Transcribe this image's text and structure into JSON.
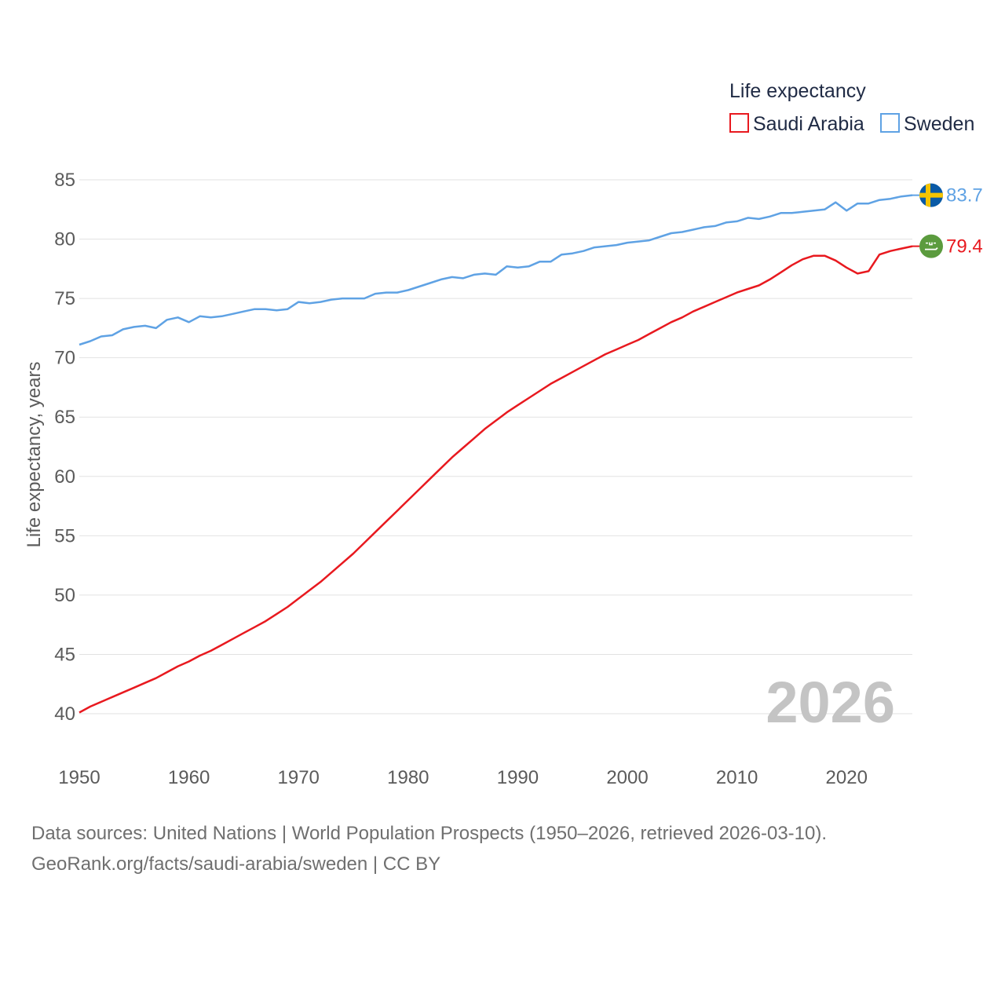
{
  "chart_data": {
    "type": "line",
    "legend_title": "Life expectancy",
    "ylabel": "Life expectancy, years",
    "xlabel": "",
    "ylim": [
      38.5,
      86
    ],
    "xlim": [
      1950,
      2026
    ],
    "y_ticks": [
      40,
      45,
      50,
      55,
      60,
      65,
      70,
      75,
      80,
      85
    ],
    "x_ticks": [
      1950,
      1960,
      1970,
      1980,
      1990,
      2000,
      2010,
      2020
    ],
    "grid": true,
    "legend_position": "top-right",
    "year_watermark": "2026",
    "series": [
      {
        "name": "Saudi Arabia",
        "color": "#e8191f",
        "end_label": "79.4",
        "flag_icon": "saudi-arabia-flag-icon",
        "points": [
          [
            1950,
            40.1
          ],
          [
            1951,
            40.6
          ],
          [
            1952,
            41.0
          ],
          [
            1953,
            41.4
          ],
          [
            1954,
            41.8
          ],
          [
            1955,
            42.2
          ],
          [
            1956,
            42.6
          ],
          [
            1957,
            43.0
          ],
          [
            1958,
            43.5
          ],
          [
            1959,
            44.0
          ],
          [
            1960,
            44.4
          ],
          [
            1961,
            44.9
          ],
          [
            1962,
            45.3
          ],
          [
            1963,
            45.8
          ],
          [
            1964,
            46.3
          ],
          [
            1965,
            46.8
          ],
          [
            1966,
            47.3
          ],
          [
            1967,
            47.8
          ],
          [
            1968,
            48.4
          ],
          [
            1969,
            49.0
          ],
          [
            1970,
            49.7
          ],
          [
            1971,
            50.4
          ],
          [
            1972,
            51.1
          ],
          [
            1973,
            51.9
          ],
          [
            1974,
            52.7
          ],
          [
            1975,
            53.5
          ],
          [
            1976,
            54.4
          ],
          [
            1977,
            55.3
          ],
          [
            1978,
            56.2
          ],
          [
            1979,
            57.1
          ],
          [
            1980,
            58.0
          ],
          [
            1981,
            58.9
          ],
          [
            1982,
            59.8
          ],
          [
            1983,
            60.7
          ],
          [
            1984,
            61.6
          ],
          [
            1985,
            62.4
          ],
          [
            1986,
            63.2
          ],
          [
            1987,
            64.0
          ],
          [
            1988,
            64.7
          ],
          [
            1989,
            65.4
          ],
          [
            1990,
            66.0
          ],
          [
            1991,
            66.6
          ],
          [
            1992,
            67.2
          ],
          [
            1993,
            67.8
          ],
          [
            1994,
            68.3
          ],
          [
            1995,
            68.8
          ],
          [
            1996,
            69.3
          ],
          [
            1997,
            69.8
          ],
          [
            1998,
            70.3
          ],
          [
            1999,
            70.7
          ],
          [
            2000,
            71.1
          ],
          [
            2001,
            71.5
          ],
          [
            2002,
            72.0
          ],
          [
            2003,
            72.5
          ],
          [
            2004,
            73.0
          ],
          [
            2005,
            73.4
          ],
          [
            2006,
            73.9
          ],
          [
            2007,
            74.3
          ],
          [
            2008,
            74.7
          ],
          [
            2009,
            75.1
          ],
          [
            2010,
            75.5
          ],
          [
            2011,
            75.8
          ],
          [
            2012,
            76.1
          ],
          [
            2013,
            76.6
          ],
          [
            2014,
            77.2
          ],
          [
            2015,
            77.8
          ],
          [
            2016,
            78.3
          ],
          [
            2017,
            78.6
          ],
          [
            2018,
            78.6
          ],
          [
            2019,
            78.2
          ],
          [
            2020,
            77.6
          ],
          [
            2021,
            77.1
          ],
          [
            2022,
            77.3
          ],
          [
            2023,
            78.7
          ],
          [
            2024,
            79.0
          ],
          [
            2025,
            79.2
          ],
          [
            2026,
            79.4
          ]
        ]
      },
      {
        "name": "Sweden",
        "color": "#5fa2e4",
        "end_label": "83.7",
        "flag_icon": "sweden-flag-icon",
        "points": [
          [
            1950,
            71.1
          ],
          [
            1951,
            71.4
          ],
          [
            1952,
            71.8
          ],
          [
            1953,
            71.9
          ],
          [
            1954,
            72.4
          ],
          [
            1955,
            72.6
          ],
          [
            1956,
            72.7
          ],
          [
            1957,
            72.5
          ],
          [
            1958,
            73.2
          ],
          [
            1959,
            73.4
          ],
          [
            1960,
            73.0
          ],
          [
            1961,
            73.5
          ],
          [
            1962,
            73.4
          ],
          [
            1963,
            73.5
          ],
          [
            1964,
            73.7
          ],
          [
            1965,
            73.9
          ],
          [
            1966,
            74.1
          ],
          [
            1967,
            74.1
          ],
          [
            1968,
            74.0
          ],
          [
            1969,
            74.1
          ],
          [
            1970,
            74.7
          ],
          [
            1971,
            74.6
          ],
          [
            1972,
            74.7
          ],
          [
            1973,
            74.9
          ],
          [
            1974,
            75.0
          ],
          [
            1975,
            75.0
          ],
          [
            1976,
            75.0
          ],
          [
            1977,
            75.4
          ],
          [
            1978,
            75.5
          ],
          [
            1979,
            75.5
          ],
          [
            1980,
            75.7
          ],
          [
            1981,
            76.0
          ],
          [
            1982,
            76.3
          ],
          [
            1983,
            76.6
          ],
          [
            1984,
            76.8
          ],
          [
            1985,
            76.7
          ],
          [
            1986,
            77.0
          ],
          [
            1987,
            77.1
          ],
          [
            1988,
            77.0
          ],
          [
            1989,
            77.7
          ],
          [
            1990,
            77.6
          ],
          [
            1991,
            77.7
          ],
          [
            1992,
            78.1
          ],
          [
            1993,
            78.1
          ],
          [
            1994,
            78.7
          ],
          [
            1995,
            78.8
          ],
          [
            1996,
            79.0
          ],
          [
            1997,
            79.3
          ],
          [
            1998,
            79.4
          ],
          [
            1999,
            79.5
          ],
          [
            2000,
            79.7
          ],
          [
            2001,
            79.8
          ],
          [
            2002,
            79.9
          ],
          [
            2003,
            80.2
          ],
          [
            2004,
            80.5
          ],
          [
            2005,
            80.6
          ],
          [
            2006,
            80.8
          ],
          [
            2007,
            81.0
          ],
          [
            2008,
            81.1
          ],
          [
            2009,
            81.4
          ],
          [
            2010,
            81.5
          ],
          [
            2011,
            81.8
          ],
          [
            2012,
            81.7
          ],
          [
            2013,
            81.9
          ],
          [
            2014,
            82.2
          ],
          [
            2015,
            82.2
          ],
          [
            2016,
            82.3
          ],
          [
            2017,
            82.4
          ],
          [
            2018,
            82.5
          ],
          [
            2019,
            83.1
          ],
          [
            2020,
            82.4
          ],
          [
            2021,
            83.0
          ],
          [
            2022,
            83.0
          ],
          [
            2023,
            83.3
          ],
          [
            2024,
            83.4
          ],
          [
            2025,
            83.6
          ],
          [
            2026,
            83.7
          ]
        ]
      }
    ]
  },
  "footer": {
    "sources": "Data sources: United Nations | World Population Prospects (1950–2026, retrieved 2026-03-10).",
    "credit": "GeoRank.org/facts/saudi-arabia/sweden | CC BY"
  },
  "colors": {
    "grid": "#e2e2e2",
    "tick_text": "#5b5b5b",
    "watermark": "#c4c4c4"
  }
}
